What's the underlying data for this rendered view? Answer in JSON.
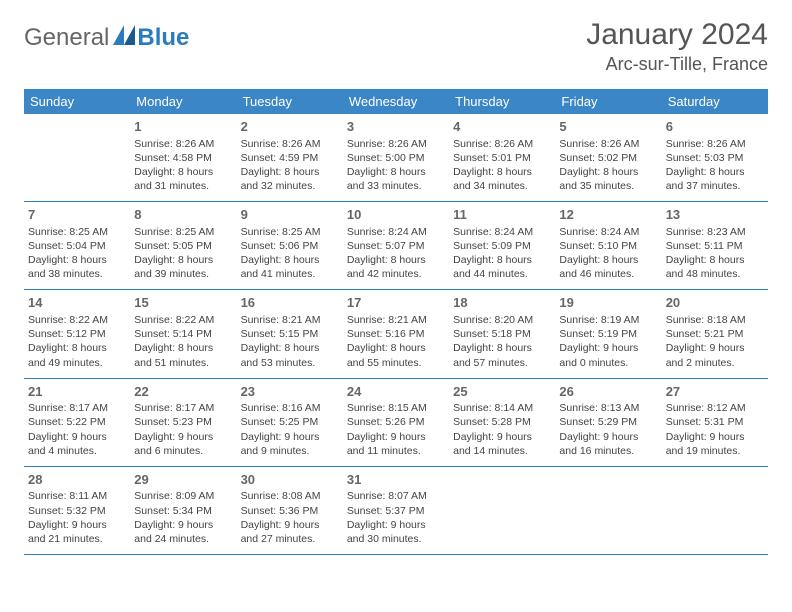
{
  "brand": {
    "part1": "General",
    "part2": "Blue"
  },
  "title": "January 2024",
  "location": "Arc-sur-Tille, France",
  "colors": {
    "header_bg": "#3b86c6",
    "header_text": "#ffffff",
    "row_divider": "#2b7bbf",
    "text": "#444444",
    "daynum": "#666666",
    "brand_general": "#666666",
    "brand_blue": "#2b7bbf",
    "background": "#ffffff"
  },
  "typography": {
    "title_fontsize": 30,
    "location_fontsize": 18,
    "header_fontsize": 13,
    "cell_fontsize": 10.5,
    "daynum_fontsize": 13
  },
  "days_of_week": [
    "Sunday",
    "Monday",
    "Tuesday",
    "Wednesday",
    "Thursday",
    "Friday",
    "Saturday"
  ],
  "weeks": [
    [
      null,
      {
        "n": "1",
        "sunrise": "8:26 AM",
        "sunset": "4:58 PM",
        "daylight": "8 hours and 31 minutes."
      },
      {
        "n": "2",
        "sunrise": "8:26 AM",
        "sunset": "4:59 PM",
        "daylight": "8 hours and 32 minutes."
      },
      {
        "n": "3",
        "sunrise": "8:26 AM",
        "sunset": "5:00 PM",
        "daylight": "8 hours and 33 minutes."
      },
      {
        "n": "4",
        "sunrise": "8:26 AM",
        "sunset": "5:01 PM",
        "daylight": "8 hours and 34 minutes."
      },
      {
        "n": "5",
        "sunrise": "8:26 AM",
        "sunset": "5:02 PM",
        "daylight": "8 hours and 35 minutes."
      },
      {
        "n": "6",
        "sunrise": "8:26 AM",
        "sunset": "5:03 PM",
        "daylight": "8 hours and 37 minutes."
      }
    ],
    [
      {
        "n": "7",
        "sunrise": "8:25 AM",
        "sunset": "5:04 PM",
        "daylight": "8 hours and 38 minutes."
      },
      {
        "n": "8",
        "sunrise": "8:25 AM",
        "sunset": "5:05 PM",
        "daylight": "8 hours and 39 minutes."
      },
      {
        "n": "9",
        "sunrise": "8:25 AM",
        "sunset": "5:06 PM",
        "daylight": "8 hours and 41 minutes."
      },
      {
        "n": "10",
        "sunrise": "8:24 AM",
        "sunset": "5:07 PM",
        "daylight": "8 hours and 42 minutes."
      },
      {
        "n": "11",
        "sunrise": "8:24 AM",
        "sunset": "5:09 PM",
        "daylight": "8 hours and 44 minutes."
      },
      {
        "n": "12",
        "sunrise": "8:24 AM",
        "sunset": "5:10 PM",
        "daylight": "8 hours and 46 minutes."
      },
      {
        "n": "13",
        "sunrise": "8:23 AM",
        "sunset": "5:11 PM",
        "daylight": "8 hours and 48 minutes."
      }
    ],
    [
      {
        "n": "14",
        "sunrise": "8:22 AM",
        "sunset": "5:12 PM",
        "daylight": "8 hours and 49 minutes."
      },
      {
        "n": "15",
        "sunrise": "8:22 AM",
        "sunset": "5:14 PM",
        "daylight": "8 hours and 51 minutes."
      },
      {
        "n": "16",
        "sunrise": "8:21 AM",
        "sunset": "5:15 PM",
        "daylight": "8 hours and 53 minutes."
      },
      {
        "n": "17",
        "sunrise": "8:21 AM",
        "sunset": "5:16 PM",
        "daylight": "8 hours and 55 minutes."
      },
      {
        "n": "18",
        "sunrise": "8:20 AM",
        "sunset": "5:18 PM",
        "daylight": "8 hours and 57 minutes."
      },
      {
        "n": "19",
        "sunrise": "8:19 AM",
        "sunset": "5:19 PM",
        "daylight": "9 hours and 0 minutes."
      },
      {
        "n": "20",
        "sunrise": "8:18 AM",
        "sunset": "5:21 PM",
        "daylight": "9 hours and 2 minutes."
      }
    ],
    [
      {
        "n": "21",
        "sunrise": "8:17 AM",
        "sunset": "5:22 PM",
        "daylight": "9 hours and 4 minutes."
      },
      {
        "n": "22",
        "sunrise": "8:17 AM",
        "sunset": "5:23 PM",
        "daylight": "9 hours and 6 minutes."
      },
      {
        "n": "23",
        "sunrise": "8:16 AM",
        "sunset": "5:25 PM",
        "daylight": "9 hours and 9 minutes."
      },
      {
        "n": "24",
        "sunrise": "8:15 AM",
        "sunset": "5:26 PM",
        "daylight": "9 hours and 11 minutes."
      },
      {
        "n": "25",
        "sunrise": "8:14 AM",
        "sunset": "5:28 PM",
        "daylight": "9 hours and 14 minutes."
      },
      {
        "n": "26",
        "sunrise": "8:13 AM",
        "sunset": "5:29 PM",
        "daylight": "9 hours and 16 minutes."
      },
      {
        "n": "27",
        "sunrise": "8:12 AM",
        "sunset": "5:31 PM",
        "daylight": "9 hours and 19 minutes."
      }
    ],
    [
      {
        "n": "28",
        "sunrise": "8:11 AM",
        "sunset": "5:32 PM",
        "daylight": "9 hours and 21 minutes."
      },
      {
        "n": "29",
        "sunrise": "8:09 AM",
        "sunset": "5:34 PM",
        "daylight": "9 hours and 24 minutes."
      },
      {
        "n": "30",
        "sunrise": "8:08 AM",
        "sunset": "5:36 PM",
        "daylight": "9 hours and 27 minutes."
      },
      {
        "n": "31",
        "sunrise": "8:07 AM",
        "sunset": "5:37 PM",
        "daylight": "9 hours and 30 minutes."
      },
      null,
      null,
      null
    ]
  ],
  "labels": {
    "sunrise": "Sunrise:",
    "sunset": "Sunset:",
    "daylight": "Daylight:"
  }
}
